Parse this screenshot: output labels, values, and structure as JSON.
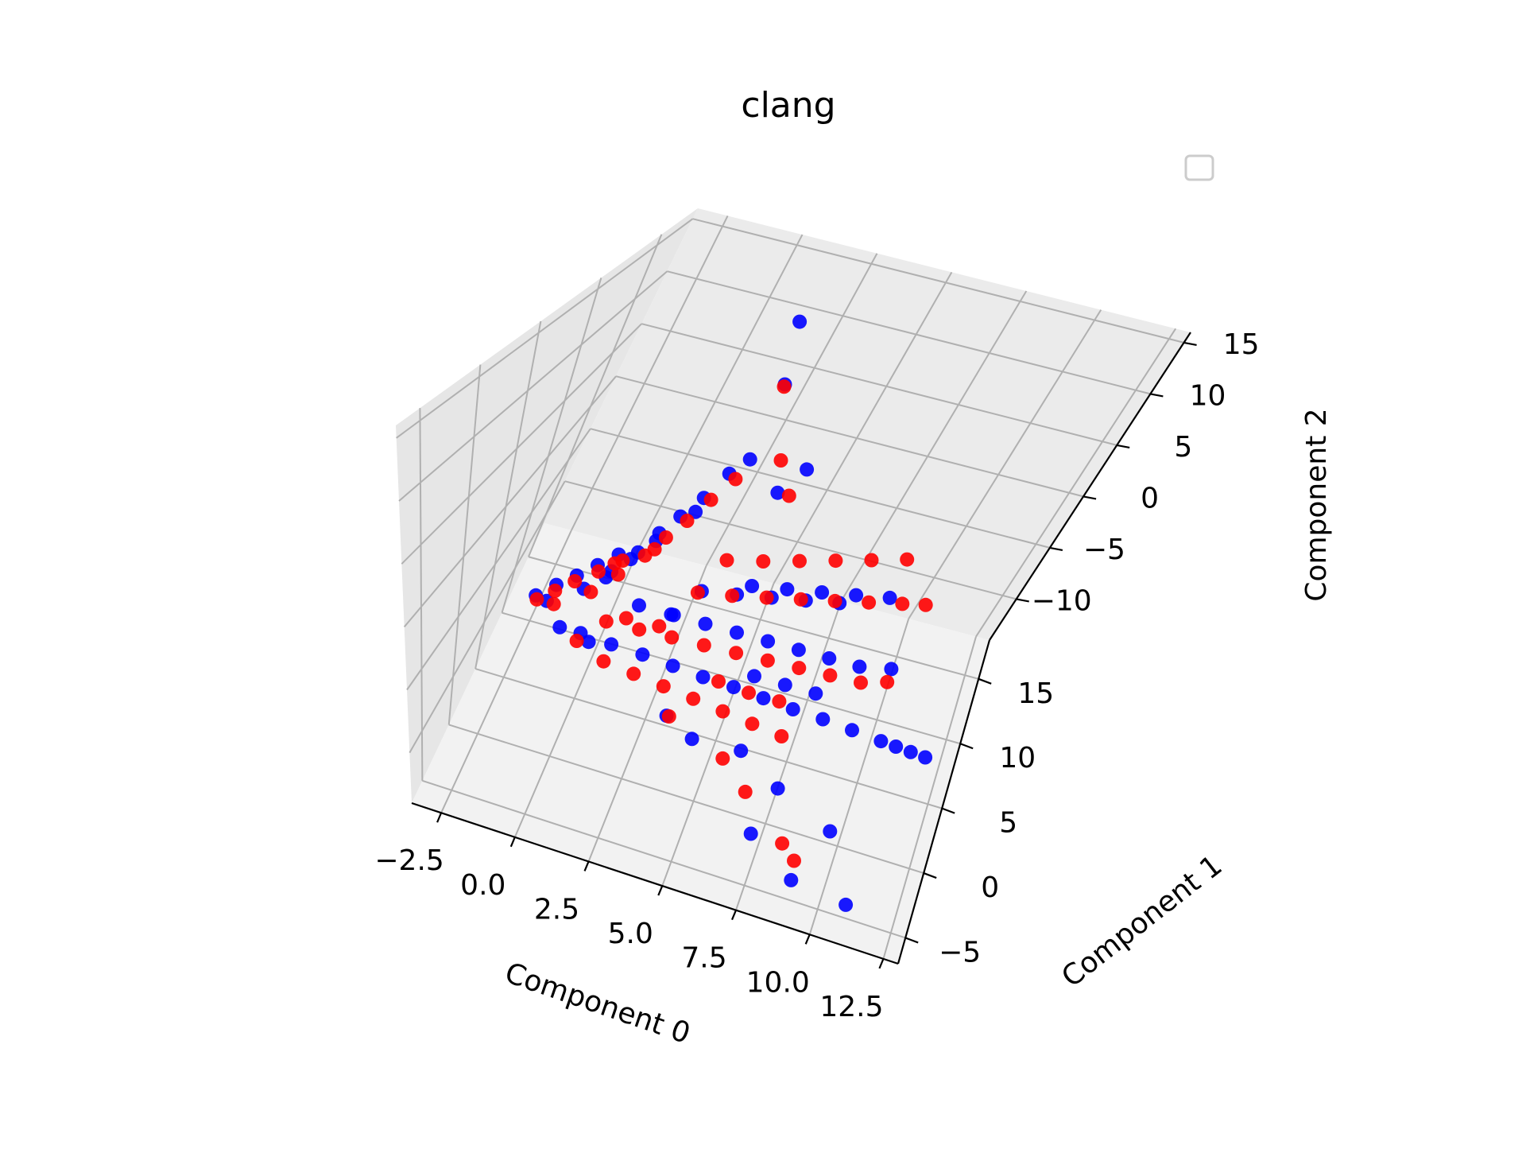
{
  "chart_data": {
    "type": "scatter",
    "title": "clang",
    "xlabel": "Component 0",
    "ylabel": "Component 1",
    "zlabel": "Component 2",
    "xlim": [
      -3.5,
      13
    ],
    "ylim": [
      -7,
      18
    ],
    "zlim": [
      -14,
      16
    ],
    "xticks": [
      "−2.5",
      "0.0",
      "2.5",
      "5.0",
      "7.5",
      "10.0",
      "12.5"
    ],
    "yticks": [
      "−5",
      "0",
      "5",
      "10",
      "15"
    ],
    "zticks": [
      "−10",
      "−5",
      "0",
      "5",
      "10",
      "15"
    ],
    "grid": true,
    "legend": {
      "placement": "top-right",
      "entries": []
    },
    "series": [
      {
        "color": "#0000ff",
        "points": [
          [
            -1.0,
            0.0,
            -1.5
          ],
          [
            -0.5,
            0.6,
            -0.8
          ],
          [
            0.0,
            1.2,
            -0.2
          ],
          [
            0.5,
            1.8,
            0.5
          ],
          [
            1.0,
            2.4,
            1.2
          ],
          [
            -0.8,
            0.8,
            -2.5
          ],
          [
            0.2,
            1.6,
            -1.5
          ],
          [
            0.8,
            2.6,
            -0.5
          ],
          [
            1.4,
            3.4,
            0.8
          ],
          [
            1.8,
            4.2,
            2.0
          ],
          [
            2.2,
            5.0,
            3.0
          ],
          [
            2.6,
            6.0,
            4.0
          ],
          [
            3.0,
            7.0,
            5.5
          ],
          [
            3.4,
            7.6,
            6.5
          ],
          [
            2.4,
            6.2,
            2.5
          ],
          [
            0.5,
            0.5,
            -4.0
          ],
          [
            1.5,
            0.8,
            -4.5
          ],
          [
            2.5,
            1.2,
            -5.0
          ],
          [
            3.5,
            1.5,
            -5.5
          ],
          [
            4.5,
            1.8,
            -6.0
          ],
          [
            5.5,
            2.2,
            -6.5
          ],
          [
            6.5,
            2.5,
            -7.0
          ],
          [
            7.5,
            2.8,
            -7.5
          ],
          [
            8.5,
            3.2,
            -8.0
          ],
          [
            9.5,
            3.5,
            -8.5
          ],
          [
            10.5,
            3.8,
            -9.0
          ],
          [
            11.0,
            4.2,
            -9.5
          ],
          [
            11.5,
            4.6,
            -10.0
          ],
          [
            12.0,
            5.0,
            -10.5
          ],
          [
            3.0,
            3.0,
            -3.0
          ],
          [
            4.0,
            3.5,
            -3.5
          ],
          [
            5.0,
            4.0,
            -4.0
          ],
          [
            6.0,
            4.5,
            -4.5
          ],
          [
            7.0,
            5.0,
            -5.0
          ],
          [
            8.0,
            5.5,
            -5.5
          ],
          [
            9.0,
            6.0,
            -6.0
          ],
          [
            10.0,
            6.5,
            -6.0
          ],
          [
            5.0,
            5.0,
            -1.0
          ],
          [
            6.0,
            6.0,
            -1.5
          ],
          [
            7.0,
            7.0,
            -2.0
          ],
          [
            8.0,
            8.0,
            -2.5
          ],
          [
            9.0,
            9.0,
            -3.0
          ],
          [
            4.5,
            8.0,
            4.0
          ],
          [
            5.0,
            9.0,
            5.5
          ],
          [
            3.0,
            11.0,
            10.0
          ],
          [
            2.5,
            12.0,
            14.5
          ],
          [
            7.5,
            -4.0,
            -11.0
          ],
          [
            9.0,
            -4.5,
            -13.0
          ],
          [
            11.0,
            -5.5,
            -12.5
          ],
          [
            8.0,
            -2.0,
            -9.0
          ],
          [
            6.5,
            -1.0,
            -8.0
          ],
          [
            10.0,
            -3.0,
            -10.0
          ],
          [
            4.0,
            -1.5,
            -6.5
          ],
          [
            5.0,
            -2.0,
            -7.2
          ],
          [
            1.0,
            1.0,
            0.5
          ],
          [
            1.5,
            2.0,
            1.5
          ],
          [
            2.0,
            3.0,
            2.5
          ],
          [
            0.0,
            -0.5,
            -3.0
          ],
          [
            1.0,
            -0.5,
            -3.5
          ],
          [
            3.5,
            4.5,
            -2.0
          ],
          [
            4.5,
            5.5,
            -2.5
          ],
          [
            5.5,
            6.5,
            -3.0
          ],
          [
            6.5,
            7.5,
            -3.5
          ],
          [
            7.5,
            8.5,
            -4.0
          ],
          [
            2.0,
            2.0,
            -2.0
          ],
          [
            3.0,
            2.5,
            -2.5
          ],
          [
            6.0,
            3.0,
            -6.0
          ],
          [
            7.0,
            3.5,
            -6.5
          ],
          [
            8.0,
            4.0,
            -7.0
          ]
        ]
      },
      {
        "color": "#ff0000",
        "points": [
          [
            -1.0,
            0.2,
            -2.0
          ],
          [
            -0.5,
            0.5,
            -1.2
          ],
          [
            0.0,
            1.0,
            -0.5
          ],
          [
            0.6,
            1.6,
            0.2
          ],
          [
            1.2,
            2.2,
            1.0
          ],
          [
            -0.6,
            1.0,
            -2.8
          ],
          [
            0.4,
            1.8,
            -1.8
          ],
          [
            1.0,
            2.8,
            -0.8
          ],
          [
            1.6,
            3.6,
            0.5
          ],
          [
            2.0,
            4.4,
            1.6
          ],
          [
            2.4,
            5.2,
            2.6
          ],
          [
            2.8,
            6.2,
            3.8
          ],
          [
            3.2,
            7.2,
            5.0
          ],
          [
            1.2,
            1.0,
            -3.0
          ],
          [
            2.2,
            1.6,
            -3.5
          ],
          [
            3.2,
            2.2,
            -4.0
          ],
          [
            4.2,
            2.8,
            -4.5
          ],
          [
            5.2,
            3.4,
            -5.0
          ],
          [
            6.2,
            4.0,
            -5.5
          ],
          [
            7.2,
            4.6,
            -6.0
          ],
          [
            8.2,
            5.2,
            -6.5
          ],
          [
            9.2,
            5.8,
            -7.0
          ],
          [
            10.0,
            6.4,
            -7.0
          ],
          [
            3.5,
            3.8,
            -1.5
          ],
          [
            4.5,
            4.6,
            -1.8
          ],
          [
            5.5,
            5.4,
            -2.0
          ],
          [
            6.5,
            6.2,
            -2.2
          ],
          [
            7.5,
            7.0,
            -2.4
          ],
          [
            8.5,
            7.8,
            -2.6
          ],
          [
            9.5,
            8.6,
            -2.8
          ],
          [
            10.2,
            9.2,
            -3.0
          ],
          [
            4.0,
            5.0,
            0.5
          ],
          [
            5.0,
            6.0,
            0.2
          ],
          [
            6.0,
            7.0,
            0.0
          ],
          [
            7.0,
            8.0,
            -0.2
          ],
          [
            8.0,
            9.0,
            -0.4
          ],
          [
            9.0,
            10.0,
            -0.6
          ],
          [
            1.5,
            -0.2,
            -5.0
          ],
          [
            2.5,
            0.0,
            -5.5
          ],
          [
            3.5,
            0.2,
            -6.0
          ],
          [
            4.5,
            0.4,
            -6.5
          ],
          [
            5.5,
            0.6,
            -7.0
          ],
          [
            6.5,
            0.8,
            -7.5
          ],
          [
            7.5,
            1.0,
            -8.0
          ],
          [
            3.0,
            11.0,
            9.8
          ],
          [
            4.0,
            9.5,
            5.2
          ],
          [
            4.8,
            8.5,
            3.5
          ],
          [
            9.0,
            -4.0,
            -12.0
          ],
          [
            7.0,
            -2.5,
            -9.5
          ],
          [
            6.0,
            -1.5,
            -8.5
          ],
          [
            8.5,
            -3.5,
            -11.5
          ],
          [
            4.0,
            -1.0,
            -7.0
          ],
          [
            0.5,
            0.0,
            -4.2
          ],
          [
            1.8,
            1.2,
            -2.5
          ],
          [
            2.8,
            1.8,
            -3.0
          ],
          [
            5.0,
            2.0,
            -6.2
          ],
          [
            6.0,
            2.4,
            -6.8
          ],
          [
            7.0,
            2.8,
            -7.2
          ],
          [
            2.0,
            3.0,
            1.8
          ],
          [
            1.0,
            2.0,
            0.8
          ]
        ]
      }
    ]
  }
}
